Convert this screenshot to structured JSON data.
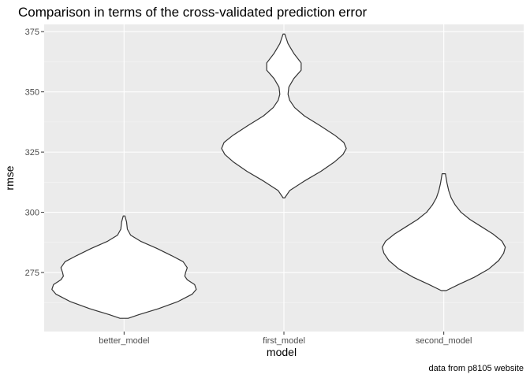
{
  "chart_data": {
    "type": "violin",
    "title": "Comparison in terms of the cross-validated prediction error",
    "xlabel": "model",
    "ylabel": "rmse",
    "caption": "data from p8105 website",
    "categories": [
      "better_model",
      "first_model",
      "second_model"
    ],
    "ylim": [
      250.5,
      378
    ],
    "yticks": [
      275,
      300,
      325,
      350,
      375
    ],
    "grid": true,
    "legend": "none",
    "colors": {
      "panel": "#ebebeb",
      "grid_major": "#ffffff",
      "grid_minor": "#f5f5f5",
      "violin_fill": "#ffffff",
      "violin_stroke": "#333333",
      "tick_text": "#4d4d4d"
    },
    "density": [
      {
        "name": "better_model",
        "profile": [
          [
            256.0,
            0.05
          ],
          [
            257.5,
            0.18
          ],
          [
            260.0,
            0.42
          ],
          [
            263.0,
            0.66
          ],
          [
            266.0,
            0.83
          ],
          [
            268.0,
            0.88
          ],
          [
            270.0,
            0.86
          ],
          [
            272.0,
            0.77
          ],
          [
            273.5,
            0.74
          ],
          [
            275.0,
            0.75
          ],
          [
            277.0,
            0.77
          ],
          [
            279.5,
            0.72
          ],
          [
            282.0,
            0.58
          ],
          [
            285.0,
            0.4
          ],
          [
            288.0,
            0.2
          ],
          [
            290.5,
            0.08
          ],
          [
            293.0,
            0.04
          ],
          [
            296.0,
            0.03
          ],
          [
            298.5,
            0.01
          ]
        ]
      },
      {
        "name": "first_model",
        "profile": [
          [
            306.0,
            0.01
          ],
          [
            309.0,
            0.07
          ],
          [
            313.0,
            0.25
          ],
          [
            317.0,
            0.45
          ],
          [
            321.0,
            0.62
          ],
          [
            324.0,
            0.72
          ],
          [
            326.5,
            0.76
          ],
          [
            329.0,
            0.73
          ],
          [
            332.0,
            0.62
          ],
          [
            336.0,
            0.44
          ],
          [
            340.0,
            0.25
          ],
          [
            343.5,
            0.13
          ],
          [
            346.5,
            0.07
          ],
          [
            349.0,
            0.05
          ],
          [
            352.0,
            0.06
          ],
          [
            355.5,
            0.12
          ],
          [
            359.0,
            0.21
          ],
          [
            362.0,
            0.21
          ],
          [
            366.0,
            0.12
          ],
          [
            370.0,
            0.05
          ],
          [
            374.0,
            0.01
          ]
        ]
      },
      {
        "name": "second_model",
        "profile": [
          [
            267.5,
            0.03
          ],
          [
            270.0,
            0.18
          ],
          [
            273.0,
            0.37
          ],
          [
            276.5,
            0.55
          ],
          [
            280.0,
            0.67
          ],
          [
            283.0,
            0.73
          ],
          [
            285.5,
            0.75
          ],
          [
            288.0,
            0.71
          ],
          [
            291.0,
            0.6
          ],
          [
            294.0,
            0.46
          ],
          [
            297.0,
            0.32
          ],
          [
            300.0,
            0.21
          ],
          [
            303.0,
            0.14
          ],
          [
            306.0,
            0.09
          ],
          [
            309.0,
            0.06
          ],
          [
            312.0,
            0.04
          ],
          [
            316.0,
            0.02
          ]
        ]
      }
    ]
  }
}
